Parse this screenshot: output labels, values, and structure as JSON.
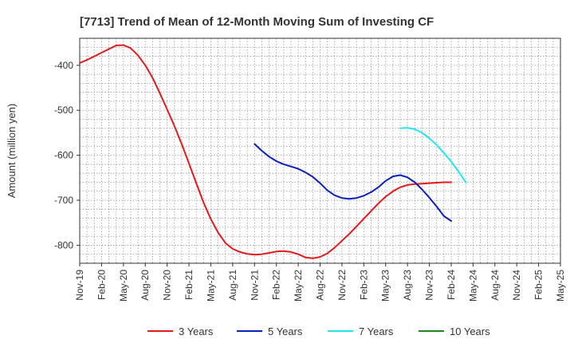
{
  "chart_data": {
    "type": "line",
    "title": "[7713]  Trend of Mean of 12-Month Moving Sum of Investing CF",
    "xlabel": "",
    "ylabel": "Amount (million yen)",
    "x_ticks": [
      "Nov-19",
      "Feb-20",
      "May-20",
      "Aug-20",
      "Nov-20",
      "Feb-21",
      "May-21",
      "Aug-21",
      "Nov-21",
      "Feb-22",
      "May-22",
      "Aug-22",
      "Nov-22",
      "Feb-23",
      "May-23",
      "Aug-23",
      "Nov-23",
      "Feb-24",
      "May-24",
      "Aug-24",
      "Nov-24",
      "Feb-25",
      "May-25"
    ],
    "x_range_months": [
      0,
      66
    ],
    "ylim": [
      -840,
      -340
    ],
    "y_ticks": [
      -800,
      -700,
      -600,
      -500,
      -400
    ],
    "grid": true,
    "legend_position": "bottom",
    "series": [
      {
        "name": "3 Years",
        "color": "#e31a1c",
        "points": [
          [
            0,
            -395
          ],
          [
            1,
            -388
          ],
          [
            2,
            -380
          ],
          [
            3,
            -372
          ],
          [
            4,
            -364
          ],
          [
            5,
            -356
          ],
          [
            6,
            -355
          ],
          [
            7,
            -362
          ],
          [
            8,
            -378
          ],
          [
            9,
            -400
          ],
          [
            10,
            -428
          ],
          [
            11,
            -462
          ],
          [
            12,
            -498
          ],
          [
            13,
            -535
          ],
          [
            14,
            -575
          ],
          [
            15,
            -618
          ],
          [
            16,
            -662
          ],
          [
            17,
            -705
          ],
          [
            18,
            -742
          ],
          [
            19,
            -772
          ],
          [
            20,
            -795
          ],
          [
            21,
            -808
          ],
          [
            22,
            -815
          ],
          [
            23,
            -819
          ],
          [
            24,
            -821
          ],
          [
            25,
            -820
          ],
          [
            26,
            -817
          ],
          [
            27,
            -814
          ],
          [
            28,
            -813
          ],
          [
            29,
            -815
          ],
          [
            30,
            -820
          ],
          [
            31,
            -827
          ],
          [
            32,
            -829
          ],
          [
            33,
            -826
          ],
          [
            34,
            -818
          ],
          [
            35,
            -805
          ],
          [
            36,
            -790
          ],
          [
            37,
            -775
          ],
          [
            38,
            -758
          ],
          [
            39,
            -741
          ],
          [
            40,
            -724
          ],
          [
            41,
            -707
          ],
          [
            42,
            -692
          ],
          [
            43,
            -680
          ],
          [
            44,
            -671
          ],
          [
            45,
            -666
          ],
          [
            46,
            -664
          ],
          [
            47,
            -663
          ],
          [
            48,
            -662
          ],
          [
            49,
            -661
          ],
          [
            50,
            -660
          ],
          [
            51,
            -660
          ]
        ]
      },
      {
        "name": "5 Years",
        "color": "#0a1fbf",
        "points": [
          [
            24,
            -575
          ],
          [
            25,
            -590
          ],
          [
            26,
            -603
          ],
          [
            27,
            -613
          ],
          [
            28,
            -620
          ],
          [
            29,
            -625
          ],
          [
            30,
            -630
          ],
          [
            31,
            -638
          ],
          [
            32,
            -648
          ],
          [
            33,
            -662
          ],
          [
            34,
            -678
          ],
          [
            35,
            -689
          ],
          [
            36,
            -695
          ],
          [
            37,
            -697
          ],
          [
            38,
            -695
          ],
          [
            39,
            -690
          ],
          [
            40,
            -682
          ],
          [
            41,
            -671
          ],
          [
            42,
            -657
          ],
          [
            43,
            -647
          ],
          [
            44,
            -644
          ],
          [
            45,
            -649
          ],
          [
            46,
            -660
          ],
          [
            47,
            -676
          ],
          [
            48,
            -694
          ],
          [
            49,
            -714
          ],
          [
            50,
            -735
          ],
          [
            51,
            -746
          ]
        ]
      },
      {
        "name": "7 Years",
        "color": "#1ee6f0",
        "points": [
          [
            44,
            -540
          ],
          [
            45,
            -539
          ],
          [
            46,
            -542
          ],
          [
            47,
            -550
          ],
          [
            48,
            -562
          ],
          [
            49,
            -577
          ],
          [
            50,
            -595
          ],
          [
            51,
            -614
          ],
          [
            52,
            -636
          ],
          [
            53,
            -660
          ]
        ]
      },
      {
        "name": "10 Years",
        "color": "#1a8a1a",
        "points": []
      }
    ]
  }
}
